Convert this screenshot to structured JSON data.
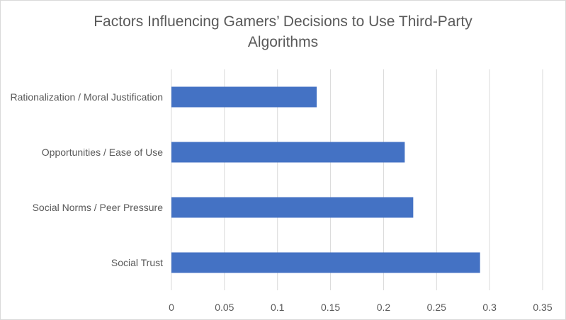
{
  "chart_data": {
    "type": "bar",
    "orientation": "horizontal",
    "title": "Factors Influencing Gamers’ Decisions to Use Third-Party Algorithms",
    "xlabel": "",
    "ylabel": "",
    "categories": [
      "Rationalization / Moral Justification",
      "Opportunities / Ease of Use",
      "Social Norms / Peer Pressure",
      "Social Trust"
    ],
    "values": [
      0.137,
      0.22,
      0.228,
      0.291
    ],
    "xlim": [
      0,
      0.35
    ],
    "xticks": [
      "0",
      "0.05",
      "0.1",
      "0.15",
      "0.2",
      "0.25",
      "0.3",
      "0.35"
    ],
    "grid": true,
    "legend": "none",
    "bar_color": "#4472c4",
    "grid_color": "#d9d9d9"
  }
}
